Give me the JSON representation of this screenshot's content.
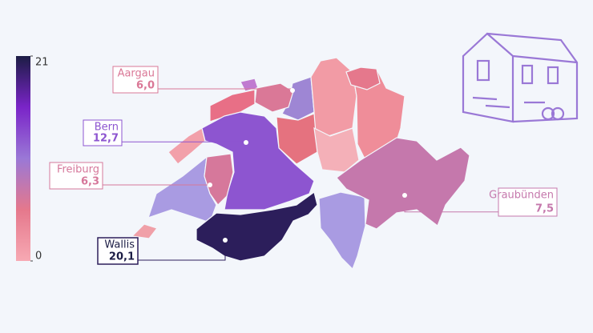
{
  "chart_data": {
    "type": "choropleth",
    "regions": [
      "Aargau",
      "Bern",
      "Freiburg",
      "Wallis",
      "Graubünden"
    ],
    "values": [
      6.0,
      12.7,
      6.3,
      20.1,
      7.5
    ],
    "value_labels": [
      "6,0",
      "12,7",
      "6,3",
      "20,1",
      "7,5"
    ],
    "colorscale": [
      "#f7a9b3",
      "#e5788c",
      "#9a78d6",
      "#7a24c8",
      "#1c1d45"
    ],
    "clim": [
      0,
      21
    ],
    "cticks": [
      0,
      21
    ]
  }
}
